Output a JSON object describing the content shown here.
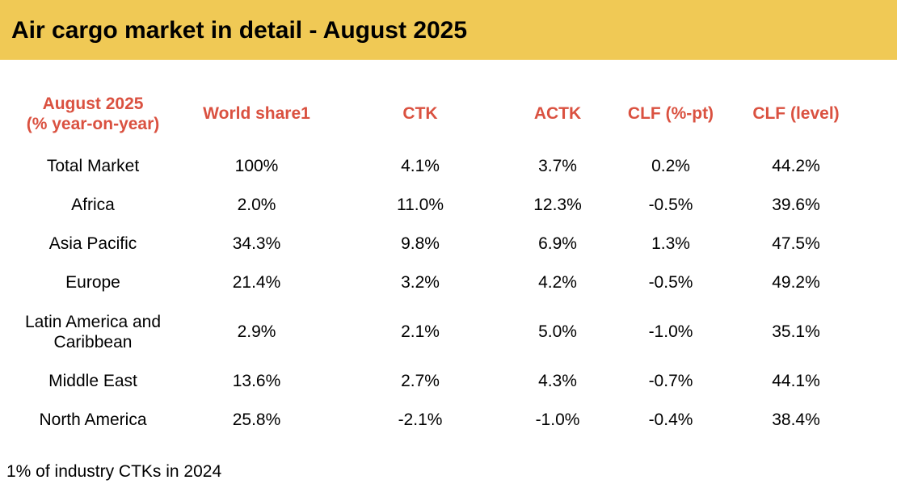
{
  "colors": {
    "banner_background": "#F0C955",
    "header_text": "#DA5140",
    "body_text": "#000000",
    "page_background": "#FFFFFF"
  },
  "banner": {
    "title": "Air cargo market in detail - August 2025"
  },
  "table": {
    "header": {
      "col0_line1": "August 2025",
      "col0_line2": "(% year-on-year)"
    }
  },
  "footnote": "1% of industry CTKs in 2024",
  "chart_data": {
    "type": "table",
    "title": "Air cargo market in detail - August 2025",
    "columns": [
      "August 2025 (% year-on-year)",
      "World share1",
      "CTK",
      "ACTK",
      "CLF (%-pt)",
      "CLF (level)"
    ],
    "rows": [
      [
        "Total Market",
        "100%",
        "4.1%",
        "3.7%",
        "0.2%",
        "44.2%"
      ],
      [
        "Africa",
        "2.0%",
        "11.0%",
        "12.3%",
        "-0.5%",
        "39.6%"
      ],
      [
        "Asia Pacific",
        "34.3%",
        "9.8%",
        "6.9%",
        "1.3%",
        "47.5%"
      ],
      [
        "Europe",
        "21.4%",
        "3.2%",
        "4.2%",
        "-0.5%",
        "49.2%"
      ],
      [
        "Latin America and Caribbean",
        "2.9%",
        "2.1%",
        "5.0%",
        "-1.0%",
        "35.1%"
      ],
      [
        "Middle East",
        "13.6%",
        "2.7%",
        "4.3%",
        "-0.7%",
        "44.1%"
      ],
      [
        "North America",
        "25.8%",
        "-2.1%",
        "-1.0%",
        "-0.4%",
        "38.4%"
      ]
    ],
    "footnote": "1% of industry CTKs in 2024",
    "layout": {
      "grid": false,
      "header_style": "bold red-orange, centered",
      "first_column_role": "region"
    }
  }
}
